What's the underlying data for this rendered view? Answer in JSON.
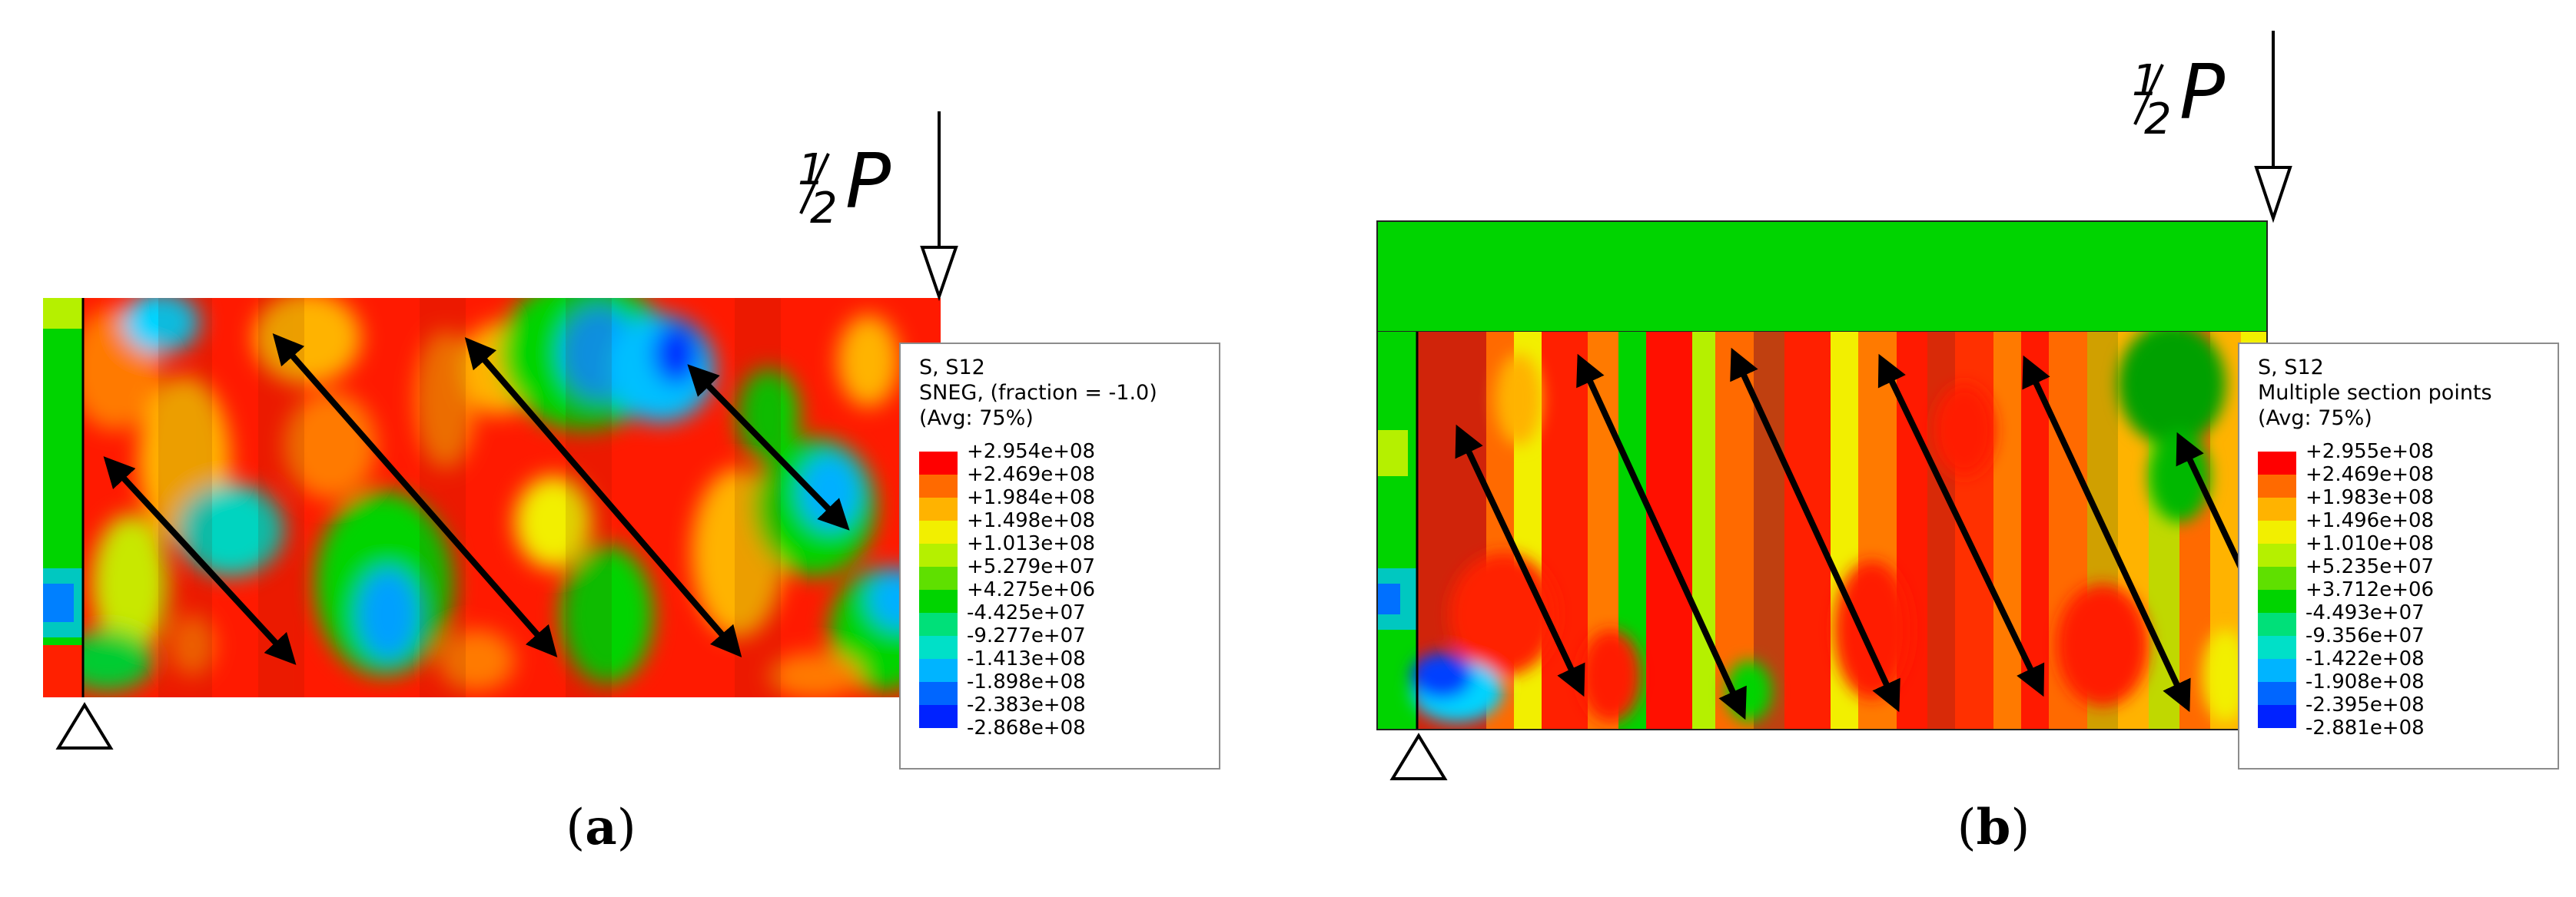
{
  "palette": [
    "#ff0000",
    "#ff6a00",
    "#ffb300",
    "#f2ef00",
    "#b5f000",
    "#5fe000",
    "#00d400",
    "#00e079",
    "#00e0c8",
    "#00b4ff",
    "#0066ff",
    "#0022ff"
  ],
  "panels": [
    {
      "id": "a",
      "caption": "a",
      "load_label_top": "1",
      "load_label_bottom": "2",
      "load_label_letter": "P",
      "legend": {
        "title": "S, S12",
        "subtitle": "SNEG, (fraction = -1.0)",
        "avg": "(Avg: 75%)",
        "values": [
          "+2.954e+08",
          "+2.469e+08",
          "+1.984e+08",
          "+1.498e+08",
          "+1.013e+08",
          "+5.279e+07",
          "+4.275e+06",
          "-4.425e+07",
          "-9.277e+07",
          "-1.413e+08",
          "-1.898e+08",
          "-2.383e+08",
          "-2.868e+08"
        ]
      }
    },
    {
      "id": "b",
      "caption": "b",
      "load_label_top": "1",
      "load_label_bottom": "2",
      "load_label_letter": "P",
      "legend": {
        "title": "S, S12",
        "subtitle": "Multiple section points",
        "avg": "(Avg: 75%)",
        "values": [
          "+2.955e+08",
          "+2.469e+08",
          "+1.983e+08",
          "+1.496e+08",
          "+1.010e+08",
          "+5.235e+07",
          "+3.712e+06",
          "-4.493e+07",
          "-9.356e+07",
          "-1.422e+08",
          "-1.908e+08",
          "-2.395e+08",
          "-2.881e+08"
        ]
      }
    }
  ]
}
